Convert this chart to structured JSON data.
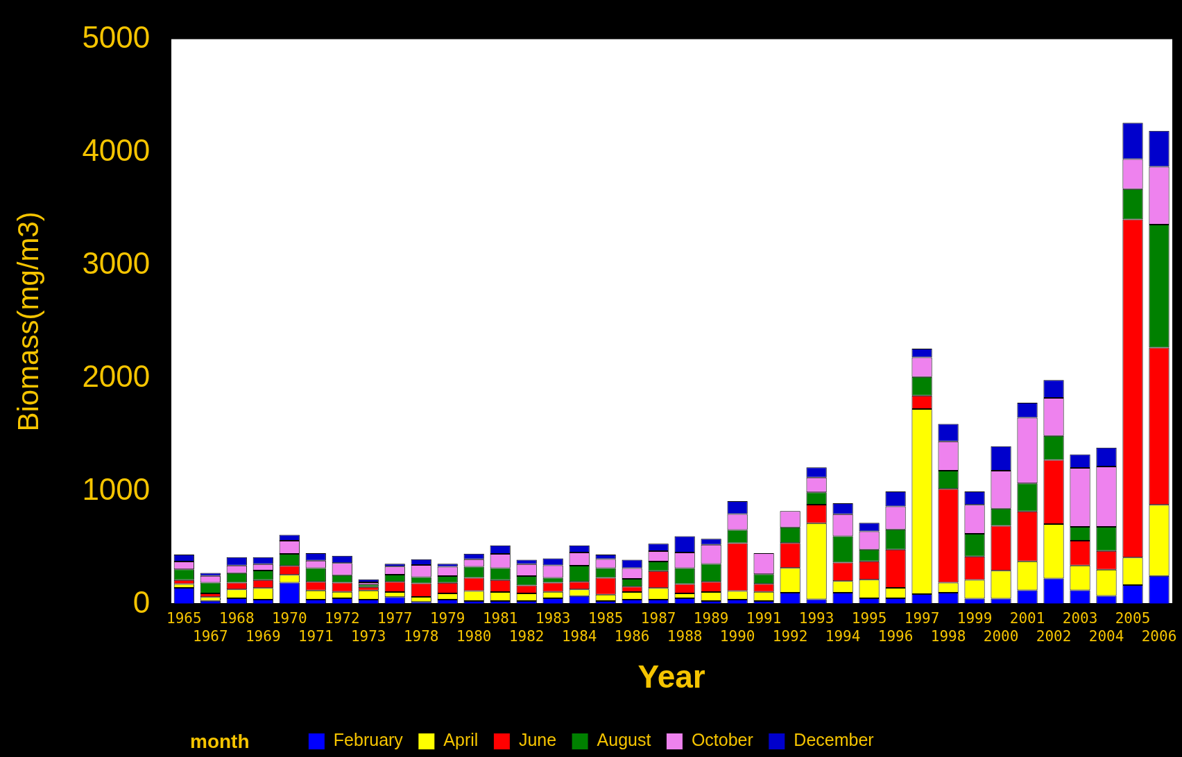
{
  "chart_data": {
    "type": "bar",
    "stacked": true,
    "xlabel": "Year",
    "ylabel": "Biomass(mg/m3)",
    "legend_title": "month",
    "legend": "bottom",
    "ylim": [
      0,
      5000
    ],
    "yticks": [
      0,
      1000,
      2000,
      3000,
      4000,
      5000
    ],
    "categories": [
      "1965",
      "1967",
      "1968",
      "1969",
      "1970",
      "1971",
      "1972",
      "1973",
      "1977",
      "1978",
      "1979",
      "1980",
      "1981",
      "1982",
      "1983",
      "1984",
      "1985",
      "1986",
      "1987",
      "1988",
      "1989",
      "1990",
      "1991",
      "1992",
      "1993",
      "1994",
      "1995",
      "1996",
      "1997",
      "1998",
      "1999",
      "2000",
      "2001",
      "2002",
      "2003",
      "2004",
      "2005",
      "2006"
    ],
    "series": [
      {
        "name": "February",
        "color": "#0000ff",
        "values": [
          144,
          29,
          52,
          39,
          190,
          39,
          52,
          39,
          62,
          20,
          39,
          27,
          27,
          27,
          52,
          72,
          27,
          39,
          39,
          52,
          27,
          39,
          27,
          101,
          43,
          101,
          52,
          52,
          89,
          101,
          49,
          49,
          122,
          226,
          122,
          73,
          168,
          250
        ]
      },
      {
        "name": "April",
        "color": "#ffff00",
        "values": [
          34,
          33,
          78,
          103,
          68,
          81,
          57,
          81,
          45,
          44,
          56,
          89,
          80,
          68,
          57,
          58,
          56,
          68,
          103,
          43,
          80,
          77,
          82,
          219,
          673,
          103,
          163,
          92,
          1638,
          89,
          165,
          247,
          256,
          482,
          220,
          232,
          244,
          628
        ]
      },
      {
        "name": "June",
        "color": "#ff0000",
        "values": [
          35,
          33,
          60,
          71,
          80,
          78,
          81,
          31,
          91,
          119,
          93,
          117,
          106,
          70,
          81,
          68,
          150,
          48,
          151,
          82,
          91,
          423,
          70,
          221,
          163,
          163,
          163,
          339,
          118,
          829,
          207,
          396,
          442,
          567,
          219,
          165,
          2992,
          1391
        ]
      },
      {
        "name": "August",
        "color": "#008000",
        "values": [
          94,
          95,
          84,
          84,
          106,
          120,
          66,
          22,
          62,
          56,
          60,
          97,
          105,
          83,
          43,
          142,
          85,
          68,
          83,
          141,
          157,
          117,
          85,
          138,
          109,
          233,
          105,
          177,
          165,
          162,
          201,
          153,
          248,
          213,
          122,
          213,
          268,
          1089
        ]
      },
      {
        "name": "October",
        "color": "#ee82ee",
        "values": [
          69,
          60,
          67,
          56,
          117,
          66,
          107,
          20,
          72,
          107,
          82,
          66,
          126,
          105,
          110,
          116,
          80,
          95,
          92,
          138,
          171,
          141,
          186,
          144,
          133,
          195,
          161,
          205,
          173,
          259,
          256,
          335,
          582,
          336,
          522,
          534,
          266,
          512
        ]
      },
      {
        "name": "December",
        "color": "#0000cc",
        "values": [
          62,
          25,
          74,
          62,
          52,
          66,
          64,
          26,
          25,
          50,
          27,
          50,
          76,
          39,
          61,
          64,
          40,
          74,
          66,
          145,
          52,
          114,
          0,
          0,
          88,
          97,
          74,
          132,
          77,
          155,
          119,
          217,
          131,
          159,
          119,
          168,
          320,
          318
        ]
      }
    ]
  }
}
